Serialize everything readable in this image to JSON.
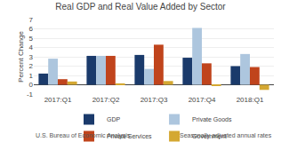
{
  "chart_data": {
    "type": "bar",
    "title": "Real GDP and Real Value Added by Sector",
    "y_label": "Percent Change",
    "categories": [
      "2017:Q1",
      "2017:Q2",
      "2017:Q3",
      "2017:Q4",
      "2018:Q1"
    ],
    "series": [
      {
        "name": "GDP",
        "color": "#1a3a6b",
        "values": [
          1.2,
          3.1,
          3.2,
          2.9,
          2.0
        ]
      },
      {
        "name": "Private Goods",
        "color": "#adc6de",
        "values": [
          2.8,
          3.1,
          1.7,
          6.1,
          3.3
        ]
      },
      {
        "name": "Private Services",
        "color": "#c0441c",
        "values": [
          0.6,
          3.1,
          4.3,
          2.3,
          1.9
        ]
      },
      {
        "name": "Government",
        "color": "#d4a832",
        "values": [
          0.35,
          0.15,
          0.4,
          -0.05,
          -0.55
        ]
      }
    ],
    "ylim": [
      -1,
      7
    ],
    "yticks": [
      -1,
      0,
      1,
      2,
      3,
      4,
      5,
      6,
      7
    ],
    "grid": true,
    "legend": "bottom",
    "annotations": [
      "U.S. Bureau of Economic Analysis",
      "Seasonally adjusted annual rates"
    ]
  }
}
